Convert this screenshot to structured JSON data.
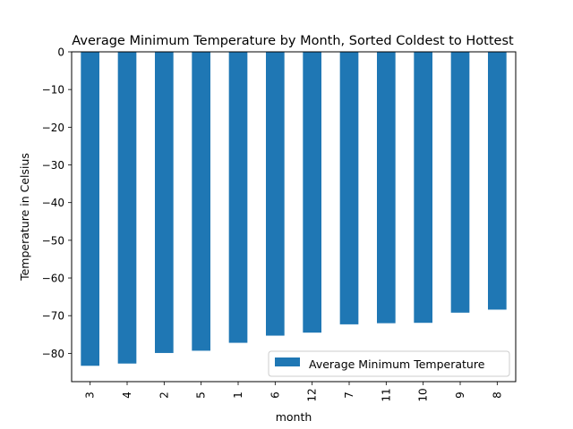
{
  "chart_data": {
    "type": "bar",
    "title": "Average Minimum Temperature by Month, Sorted Coldest to Hottest",
    "xlabel": "month",
    "ylabel": "Temperature in Celsius",
    "categories": [
      "3",
      "4",
      "2",
      "5",
      "1",
      "6",
      "12",
      "7",
      "11",
      "10",
      "9",
      "8"
    ],
    "series": [
      {
        "name": "Average Minimum Temperature",
        "values": [
          -83.3,
          -82.7,
          -79.9,
          -79.3,
          -77.2,
          -75.3,
          -74.5,
          -72.3,
          -72.0,
          -71.9,
          -69.2,
          -68.4
        ],
        "color": "#1f77b4"
      }
    ],
    "ylim": [
      -87.5,
      0
    ],
    "yticks": [
      0,
      -10,
      -20,
      -30,
      -40,
      -50,
      -60,
      -70,
      -80
    ],
    "ytick_labels": [
      "0",
      "−10",
      "−20",
      "−30",
      "−40",
      "−50",
      "−60",
      "−70",
      "−80"
    ],
    "legend_position": "lower-right",
    "grid": false
  }
}
